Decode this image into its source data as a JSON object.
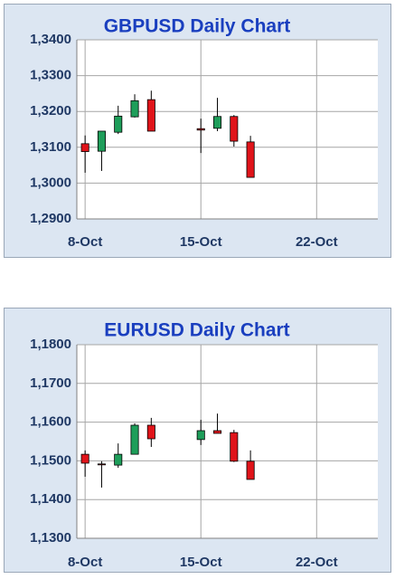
{
  "chart_data": [
    {
      "type": "candlestick",
      "title": "GBPUSD Daily Chart",
      "x": [
        8,
        9,
        10,
        11,
        12,
        15,
        16,
        17,
        18
      ],
      "open": [
        1.311,
        1.3089,
        1.3142,
        1.3185,
        1.3233,
        1.3152,
        1.3153,
        1.3186,
        1.3115
      ],
      "high": [
        1.3133,
        1.3145,
        1.3216,
        1.3248,
        1.3258,
        1.318,
        1.3238,
        1.319,
        1.3132
      ],
      "low": [
        1.3029,
        1.3034,
        1.3137,
        1.3183,
        1.3145,
        1.3084,
        1.3145,
        1.3102,
        1.3016
      ],
      "close": [
        1.3088,
        1.3145,
        1.3187,
        1.323,
        1.3145,
        1.3148,
        1.3186,
        1.3117,
        1.3016
      ],
      "up_color": "#1e9e5a",
      "down_color": "#e0141a",
      "grid": true,
      "xlim": [
        7.5,
        25.7
      ],
      "xticks": [
        {
          "value": 8,
          "label": "8-Oct"
        },
        {
          "value": 15,
          "label": "15-Oct"
        },
        {
          "value": 22,
          "label": "22-Oct"
        }
      ],
      "ylim": [
        1.29,
        1.34
      ],
      "yticks": [
        {
          "value": 1.29,
          "label": "1,2900"
        },
        {
          "value": 1.3,
          "label": "1,3000"
        },
        {
          "value": 1.31,
          "label": "1,3100"
        },
        {
          "value": 1.32,
          "label": "1,3200"
        },
        {
          "value": 1.33,
          "label": "1,3300"
        },
        {
          "value": 1.34,
          "label": "1,3400"
        }
      ]
    },
    {
      "type": "candlestick",
      "title": "EURUSD Daily Chart",
      "x": [
        8,
        9,
        10,
        11,
        12,
        15,
        16,
        17,
        18
      ],
      "open": [
        1.1517,
        1.1492,
        1.1489,
        1.1517,
        1.1592,
        1.1555,
        1.1578,
        1.1573,
        1.1499
      ],
      "high": [
        1.1527,
        1.1499,
        1.1545,
        1.1597,
        1.1611,
        1.1606,
        1.1622,
        1.158,
        1.1527
      ],
      "low": [
        1.1459,
        1.1431,
        1.1482,
        1.1517,
        1.1536,
        1.1541,
        1.1571,
        1.1497,
        1.1452
      ],
      "close": [
        1.1494,
        1.149,
        1.1517,
        1.1592,
        1.1557,
        1.1578,
        1.1571,
        1.1499,
        1.1452
      ],
      "up_color": "#1e9e5a",
      "down_color": "#e0141a",
      "grid": true,
      "xlim": [
        7.5,
        25.7
      ],
      "xticks": [
        {
          "value": 8,
          "label": "8-Oct"
        },
        {
          "value": 15,
          "label": "15-Oct"
        },
        {
          "value": 22,
          "label": "22-Oct"
        }
      ],
      "ylim": [
        1.13,
        1.18
      ],
      "yticks": [
        {
          "value": 1.13,
          "label": "1,1300"
        },
        {
          "value": 1.14,
          "label": "1,1400"
        },
        {
          "value": 1.15,
          "label": "1,1500"
        },
        {
          "value": 1.16,
          "label": "1,1600"
        },
        {
          "value": 1.17,
          "label": "1,1700"
        },
        {
          "value": 1.18,
          "label": "1,1800"
        }
      ]
    }
  ]
}
